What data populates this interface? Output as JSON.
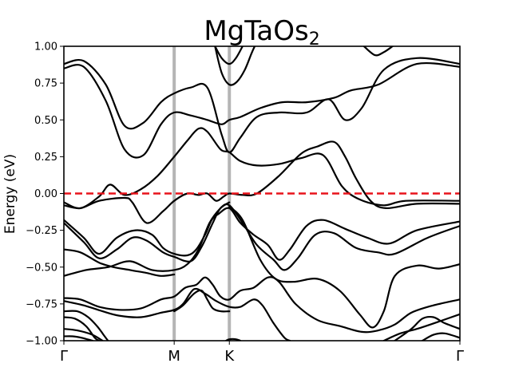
{
  "chart_data": {
    "type": "line",
    "title": "MgTaOs",
    "title_subscript": "2",
    "ylabel": "Energy (eV)",
    "xlabel": "",
    "ylim": [
      -1.0,
      1.0
    ],
    "yticks": [
      -1.0,
      -0.75,
      -0.5,
      -0.25,
      0.0,
      0.25,
      0.5,
      0.75,
      1.0
    ],
    "ytick_labels": [
      "−1.00",
      "−0.75",
      "−0.50",
      "−0.25",
      "0.00",
      "0.25",
      "0.50",
      "0.75",
      "1.00"
    ],
    "xlim": [
      0,
      3.59
    ],
    "kpoints": [
      {
        "label": "Γ",
        "x": 0.0
      },
      {
        "label": "M",
        "x": 1.0
      },
      {
        "label": "K",
        "x": 1.5
      },
      {
        "label": "Γ",
        "x": 3.59
      }
    ],
    "fermi_level": 0.0,
    "colors": {
      "bands": "#000000",
      "fermi": "#e8141b",
      "kpath_lines": "#b5b5b5"
    },
    "series": [
      {
        "values": [
          [
            0.0,
            0.88
          ],
          [
            0.18,
            0.9
          ],
          [
            0.38,
            0.74
          ],
          [
            0.55,
            0.46
          ],
          [
            0.72,
            0.48
          ],
          [
            0.88,
            0.62
          ],
          [
            1.0,
            0.68
          ],
          [
            1.15,
            0.72
          ],
          [
            1.3,
            0.72
          ],
          [
            1.43,
            0.4
          ],
          [
            1.5,
            0.28
          ],
          [
            1.6,
            0.38
          ],
          [
            1.75,
            0.52
          ],
          [
            1.95,
            0.55
          ],
          [
            2.2,
            0.55
          ],
          [
            2.4,
            0.64
          ],
          [
            2.55,
            0.5
          ],
          [
            2.7,
            0.58
          ],
          [
            2.9,
            0.84
          ],
          [
            3.2,
            0.92
          ],
          [
            3.59,
            0.88
          ]
        ]
      },
      {
        "values": [
          [
            0.0,
            0.85
          ],
          [
            0.18,
            0.86
          ],
          [
            0.38,
            0.63
          ],
          [
            0.55,
            0.3
          ],
          [
            0.72,
            0.26
          ],
          [
            0.88,
            0.47
          ],
          [
            1.0,
            0.55
          ],
          [
            1.15,
            0.53
          ],
          [
            1.3,
            0.5
          ],
          [
            1.43,
            0.47
          ],
          [
            1.5,
            0.5
          ],
          [
            1.6,
            0.52
          ],
          [
            1.78,
            0.58
          ],
          [
            1.98,
            0.62
          ],
          [
            2.2,
            0.62
          ],
          [
            2.45,
            0.65
          ],
          [
            2.6,
            0.7
          ],
          [
            2.85,
            0.74
          ],
          [
            3.2,
            0.88
          ],
          [
            3.59,
            0.86
          ]
        ]
      },
      {
        "values": [
          [
            1.37,
            1.0
          ],
          [
            1.43,
            0.92
          ],
          [
            1.5,
            0.88
          ],
          [
            1.56,
            0.92
          ],
          [
            1.62,
            1.0
          ]
        ]
      },
      {
        "values": [
          [
            1.37,
            1.0
          ],
          [
            1.43,
            0.82
          ],
          [
            1.5,
            0.74
          ],
          [
            1.57,
            0.76
          ],
          [
            1.64,
            0.84
          ],
          [
            1.7,
            0.95
          ],
          [
            1.73,
            1.0
          ]
        ]
      },
      {
        "values": [
          [
            2.72,
            1.0
          ],
          [
            2.82,
            0.94
          ],
          [
            2.9,
            0.96
          ],
          [
            2.98,
            1.0
          ]
        ]
      },
      {
        "values": [
          [
            0.0,
            -0.06
          ],
          [
            0.15,
            -0.1
          ],
          [
            0.32,
            -0.02
          ],
          [
            0.42,
            0.06
          ],
          [
            0.55,
            -0.01
          ],
          [
            0.7,
            0.03
          ],
          [
            0.85,
            0.12
          ],
          [
            1.0,
            0.25
          ],
          [
            1.12,
            0.36
          ],
          [
            1.22,
            0.44
          ],
          [
            1.3,
            0.42
          ],
          [
            1.42,
            0.3
          ],
          [
            1.5,
            0.28
          ],
          [
            1.6,
            0.22
          ],
          [
            1.75,
            0.19
          ],
          [
            1.95,
            0.2
          ],
          [
            2.15,
            0.24
          ],
          [
            2.35,
            0.26
          ],
          [
            2.52,
            0.05
          ],
          [
            2.68,
            -0.04
          ],
          [
            2.9,
            -0.08
          ],
          [
            3.1,
            -0.05
          ],
          [
            3.59,
            -0.05
          ]
        ]
      },
      {
        "values": [
          [
            0.0,
            -0.08
          ],
          [
            0.15,
            -0.1
          ],
          [
            0.32,
            -0.05
          ],
          [
            0.55,
            -0.03
          ],
          [
            0.62,
            -0.06
          ],
          [
            0.75,
            -0.2
          ],
          [
            0.9,
            -0.12
          ],
          [
            1.0,
            -0.05
          ],
          [
            1.12,
            0.0
          ],
          [
            1.22,
            -0.01
          ],
          [
            1.3,
            0.0
          ],
          [
            1.38,
            -0.05
          ],
          [
            1.45,
            -0.02
          ],
          [
            1.5,
            0.0
          ],
          [
            1.62,
            -0.01
          ],
          [
            1.75,
            0.0
          ],
          [
            1.95,
            0.12
          ],
          [
            2.15,
            0.27
          ],
          [
            2.3,
            0.32
          ],
          [
            2.45,
            0.35
          ],
          [
            2.55,
            0.25
          ],
          [
            2.65,
            0.1
          ],
          [
            2.78,
            -0.05
          ],
          [
            2.92,
            -0.1
          ],
          [
            3.2,
            -0.07
          ],
          [
            3.59,
            -0.07
          ]
        ]
      },
      {
        "values": [
          [
            0.0,
            -0.18
          ],
          [
            0.18,
            -0.3
          ],
          [
            0.32,
            -0.41
          ],
          [
            0.48,
            -0.3
          ],
          [
            0.65,
            -0.25
          ],
          [
            0.8,
            -0.28
          ],
          [
            0.9,
            -0.37
          ],
          [
            1.0,
            -0.41
          ],
          [
            1.12,
            -0.42
          ],
          [
            1.2,
            -0.38
          ],
          [
            1.28,
            -0.28
          ],
          [
            1.34,
            -0.18
          ],
          [
            1.4,
            -0.14
          ],
          [
            1.5,
            -0.1
          ],
          [
            1.6,
            -0.2
          ],
          [
            1.72,
            -0.28
          ],
          [
            1.85,
            -0.35
          ],
          [
            1.95,
            -0.45
          ],
          [
            2.05,
            -0.38
          ],
          [
            2.2,
            -0.22
          ],
          [
            2.35,
            -0.18
          ],
          [
            2.55,
            -0.24
          ],
          [
            2.75,
            -0.3
          ],
          [
            2.95,
            -0.34
          ],
          [
            3.2,
            -0.25
          ],
          [
            3.59,
            -0.19
          ]
        ]
      },
      {
        "values": [
          [
            0.0,
            -0.2
          ],
          [
            0.18,
            -0.33
          ],
          [
            0.32,
            -0.44
          ],
          [
            0.48,
            -0.38
          ],
          [
            0.62,
            -0.3
          ],
          [
            0.75,
            -0.32
          ],
          [
            0.9,
            -0.4
          ],
          [
            1.0,
            -0.43
          ],
          [
            1.15,
            -0.46
          ],
          [
            1.25,
            -0.36
          ],
          [
            1.35,
            -0.2
          ],
          [
            1.42,
            -0.1
          ],
          [
            1.5,
            -0.08
          ],
          [
            1.62,
            -0.2
          ],
          [
            1.75,
            -0.35
          ],
          [
            1.9,
            -0.45
          ],
          [
            2.0,
            -0.52
          ],
          [
            2.12,
            -0.44
          ],
          [
            2.28,
            -0.28
          ],
          [
            2.45,
            -0.27
          ],
          [
            2.65,
            -0.37
          ],
          [
            2.85,
            -0.4
          ],
          [
            3.0,
            -0.41
          ],
          [
            3.3,
            -0.3
          ],
          [
            3.59,
            -0.22
          ]
        ]
      },
      {
        "values": [
          [
            0.0,
            -0.56
          ],
          [
            0.2,
            -0.52
          ],
          [
            0.4,
            -0.5
          ],
          [
            0.6,
            -0.46
          ],
          [
            0.8,
            -0.52
          ],
          [
            1.0,
            -0.52
          ],
          [
            1.12,
            -0.48
          ],
          [
            1.22,
            -0.38
          ],
          [
            1.32,
            -0.2
          ],
          [
            1.42,
            -0.1
          ],
          [
            1.5,
            -0.06
          ]
        ]
      },
      {
        "values": [
          [
            0.0,
            -0.38
          ],
          [
            0.15,
            -0.4
          ],
          [
            0.32,
            -0.47
          ],
          [
            0.45,
            -0.5
          ],
          [
            0.6,
            -0.52
          ],
          [
            0.75,
            -0.54
          ],
          [
            0.88,
            -0.56
          ],
          [
            1.0,
            -0.55
          ]
        ]
      },
      {
        "values": [
          [
            1.5,
            -0.09
          ],
          [
            1.62,
            -0.18
          ],
          [
            1.78,
            -0.45
          ],
          [
            1.92,
            -0.58
          ],
          [
            2.08,
            -0.6
          ],
          [
            2.3,
            -0.58
          ],
          [
            2.5,
            -0.66
          ],
          [
            2.68,
            -0.82
          ],
          [
            2.8,
            -0.91
          ],
          [
            2.9,
            -0.8
          ],
          [
            3.0,
            -0.56
          ],
          [
            3.2,
            -0.49
          ],
          [
            3.4,
            -0.51
          ],
          [
            3.59,
            -0.48
          ]
        ]
      },
      {
        "values": [
          [
            0.0,
            -0.71
          ],
          [
            0.15,
            -0.72
          ],
          [
            0.32,
            -0.77
          ],
          [
            0.5,
            -0.79
          ],
          [
            0.7,
            -0.78
          ],
          [
            0.88,
            -0.72
          ],
          [
            1.0,
            -0.7
          ],
          [
            1.1,
            -0.64
          ],
          [
            1.2,
            -0.62
          ],
          [
            1.28,
            -0.57
          ],
          [
            1.35,
            -0.62
          ],
          [
            1.42,
            -0.7
          ],
          [
            1.5,
            -0.72
          ],
          [
            1.6,
            -0.66
          ],
          [
            1.72,
            -0.64
          ],
          [
            1.85,
            -0.57
          ],
          [
            1.95,
            -0.6
          ],
          [
            2.1,
            -0.75
          ],
          [
            2.3,
            -0.86
          ],
          [
            2.5,
            -0.9
          ],
          [
            2.7,
            -0.94
          ],
          [
            2.85,
            -0.93
          ],
          [
            3.0,
            -0.89
          ],
          [
            3.15,
            -0.81
          ],
          [
            3.35,
            -0.76
          ],
          [
            3.59,
            -0.72
          ]
        ]
      },
      {
        "values": [
          [
            0.0,
            -0.73
          ],
          [
            0.18,
            -0.76
          ],
          [
            0.35,
            -0.8
          ],
          [
            0.5,
            -0.83
          ],
          [
            0.7,
            -0.84
          ],
          [
            0.88,
            -0.81
          ],
          [
            1.0,
            -0.79
          ],
          [
            1.08,
            -0.75
          ],
          [
            1.18,
            -0.65
          ],
          [
            1.28,
            -0.68
          ],
          [
            1.38,
            -0.73
          ],
          [
            1.5,
            -0.77
          ],
          [
            1.6,
            -0.77
          ],
          [
            1.72,
            -0.72
          ],
          [
            1.8,
            -0.76
          ],
          [
            1.9,
            -0.88
          ],
          [
            2.0,
            -0.98
          ],
          [
            2.05,
            -1.0
          ]
        ]
      },
      {
        "values": [
          [
            1.0,
            -0.8
          ],
          [
            1.08,
            -0.76
          ],
          [
            1.18,
            -0.68
          ],
          [
            1.25,
            -0.66
          ],
          [
            1.3,
            -0.72
          ],
          [
            1.35,
            -0.78
          ],
          [
            1.42,
            -0.8
          ],
          [
            1.5,
            -0.8
          ]
        ]
      },
      {
        "values": [
          [
            0.0,
            -0.8
          ],
          [
            0.12,
            -0.8
          ],
          [
            0.22,
            -0.84
          ],
          [
            0.3,
            -0.9
          ],
          [
            0.36,
            -0.96
          ],
          [
            0.4,
            -1.0
          ]
        ]
      },
      {
        "values": [
          [
            0.0,
            -0.92
          ],
          [
            0.12,
            -0.93
          ],
          [
            0.26,
            -0.96
          ],
          [
            0.35,
            -1.0
          ]
        ]
      },
      {
        "values": [
          [
            0.0,
            -0.84
          ],
          [
            0.1,
            -0.85
          ],
          [
            0.2,
            -0.9
          ],
          [
            0.28,
            -0.98
          ],
          [
            0.32,
            -1.0
          ]
        ]
      },
      {
        "values": [
          [
            0.0,
            -0.97
          ],
          [
            0.08,
            -0.97
          ],
          [
            0.16,
            -0.98
          ],
          [
            0.26,
            -1.0
          ]
        ]
      },
      {
        "values": [
          [
            2.9,
            -1.0
          ],
          [
            3.05,
            -0.95
          ],
          [
            3.2,
            -0.92
          ],
          [
            3.4,
            -0.87
          ],
          [
            3.59,
            -0.82
          ]
        ]
      },
      {
        "values": [
          [
            3.0,
            -1.0
          ],
          [
            3.15,
            -0.92
          ],
          [
            3.25,
            -0.85
          ],
          [
            3.35,
            -0.84
          ],
          [
            3.45,
            -0.88
          ],
          [
            3.59,
            -0.92
          ]
        ]
      },
      {
        "values": [
          [
            3.25,
            -1.0
          ],
          [
            3.35,
            -0.96
          ],
          [
            3.45,
            -0.95
          ],
          [
            3.59,
            -0.98
          ]
        ]
      },
      {
        "values": [
          [
            1.47,
            -1.0
          ],
          [
            1.5,
            -0.99
          ],
          [
            1.56,
            -0.99
          ],
          [
            1.6,
            -1.0
          ]
        ]
      }
    ]
  }
}
